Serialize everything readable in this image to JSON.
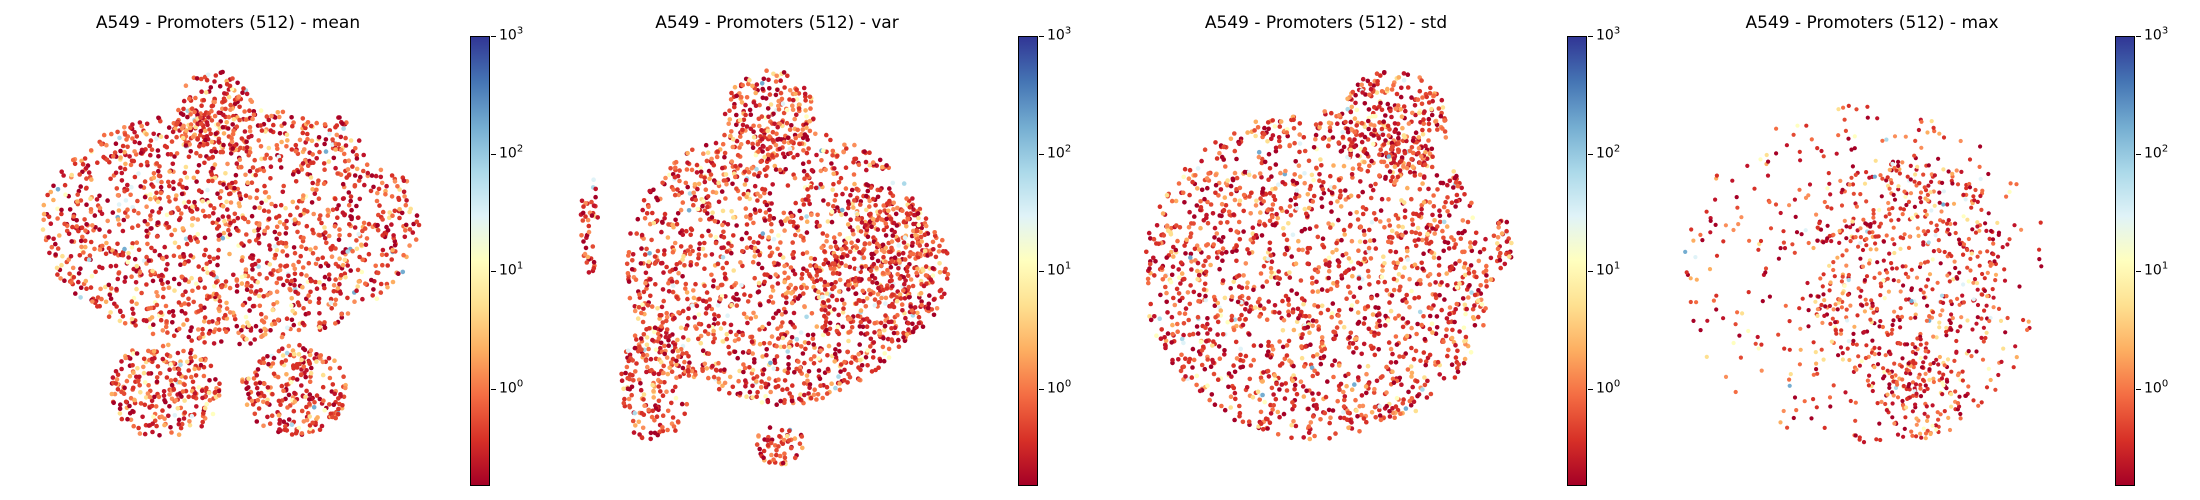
{
  "figure": {
    "panels": [
      {
        "title": "A549 - Promoters (512) - mean",
        "metric": "mean",
        "pattern": "dense"
      },
      {
        "title": "A549 - Promoters (512) - var",
        "metric": "var",
        "pattern": "dense"
      },
      {
        "title": "A549 - Promoters (512) - std",
        "metric": "std",
        "pattern": "dense"
      },
      {
        "title": "A549 - Promoters (512) - max",
        "metric": "max",
        "pattern": "sparse"
      }
    ],
    "colorbar": {
      "scale": "log",
      "colormap": "RdYlBu",
      "colors": [
        "#a50026",
        "#d73027",
        "#f46d43",
        "#fdae61",
        "#fee090",
        "#ffffbf",
        "#e0f3f8",
        "#abd9e9",
        "#74add1",
        "#4575b4",
        "#313695"
      ],
      "tick_exponents": [
        "0",
        "1",
        "2",
        "3"
      ],
      "tick_base": "10",
      "range": [
        0.15,
        1000
      ]
    }
  },
  "chart_data": [
    {
      "type": "scatter",
      "title": "A549 - Promoters (512) - mean",
      "xlabel": "",
      "ylabel": "",
      "color_scale": "log",
      "color_range": [
        0.15,
        1000
      ],
      "colorbar_ticks": [
        1,
        10,
        100,
        1000
      ],
      "legend": "colorbar-right"
    },
    {
      "type": "scatter",
      "title": "A549 - Promoters (512) - var",
      "xlabel": "",
      "ylabel": "",
      "color_scale": "log",
      "color_range": [
        0.15,
        1000
      ],
      "colorbar_ticks": [
        1,
        10,
        100,
        1000
      ],
      "legend": "colorbar-right"
    },
    {
      "type": "scatter",
      "title": "A549 - Promoters (512) - std",
      "xlabel": "",
      "ylabel": "",
      "color_scale": "log",
      "color_range": [
        0.15,
        1000
      ],
      "colorbar_ticks": [
        1,
        10,
        100,
        1000
      ],
      "legend": "colorbar-right"
    },
    {
      "type": "scatter",
      "title": "A549 - Promoters (512) - max",
      "xlabel": "",
      "ylabel": "",
      "color_scale": "log",
      "color_range": [
        0.15,
        1000
      ],
      "colorbar_ticks": [
        1,
        10,
        100,
        1000
      ],
      "legend": "colorbar-right"
    }
  ]
}
